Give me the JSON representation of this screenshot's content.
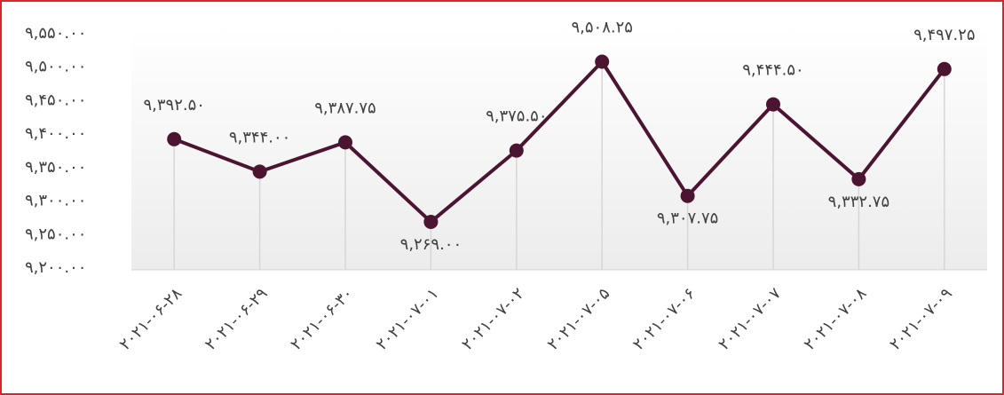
{
  "chart_data": {
    "type": "line",
    "categories": [
      "۲۰۲۱-۰۶-۲۸",
      "۲۰۲۱-۰۶-۲۹",
      "۲۰۲۱-۰۶-۳۰",
      "۲۰۲۱-۰۷-۰۱",
      "۲۰۲۱-۰۷-۰۲",
      "۲۰۲۱-۰۷-۰۵",
      "۲۰۲۱-۰۷-۰۶",
      "۲۰۲۱-۰۷-۰۷",
      "۲۰۲۱-۰۷-۰۸",
      "۲۰۲۱-۰۷-۰۹"
    ],
    "values": [
      9392.5,
      9344,
      9387.75,
      9269,
      9375.5,
      9508.25,
      9307.75,
      9444.5,
      9332.75,
      9497.25
    ],
    "value_labels": [
      "۹,۳۹۲.۵۰",
      "۹,۳۴۴.۰۰",
      "۹,۳۸۷.۷۵",
      "۹,۲۶۹.۰۰",
      "۹,۳۷۵.۵۰",
      "۹,۵۰۸.۲۵",
      "۹,۳۰۷.۷۵",
      "۹,۴۴۴.۵۰",
      "۹,۳۳۲.۷۵",
      "۹,۴۹۷.۲۵"
    ],
    "color": "#4b1531",
    "ylim": [
      9200,
      9550
    ],
    "yticks": [
      {
        "value": 9200,
        "label": "۹,۲۰۰.۰۰"
      },
      {
        "value": 9250,
        "label": "۹,۲۵۰.۰۰"
      },
      {
        "value": 9300,
        "label": "۹,۳۰۰.۰۰"
      },
      {
        "value": 9350,
        "label": "۹,۳۵۰.۰۰"
      },
      {
        "value": 9400,
        "label": "۹,۴۰۰.۰۰"
      },
      {
        "value": 9450,
        "label": "۹,۴۵۰.۰۰"
      },
      {
        "value": 9500,
        "label": "۹,۵۰۰.۰۰"
      },
      {
        "value": 9550,
        "label": "۹,۵۵۰.۰۰"
      }
    ],
    "grid": false
  }
}
